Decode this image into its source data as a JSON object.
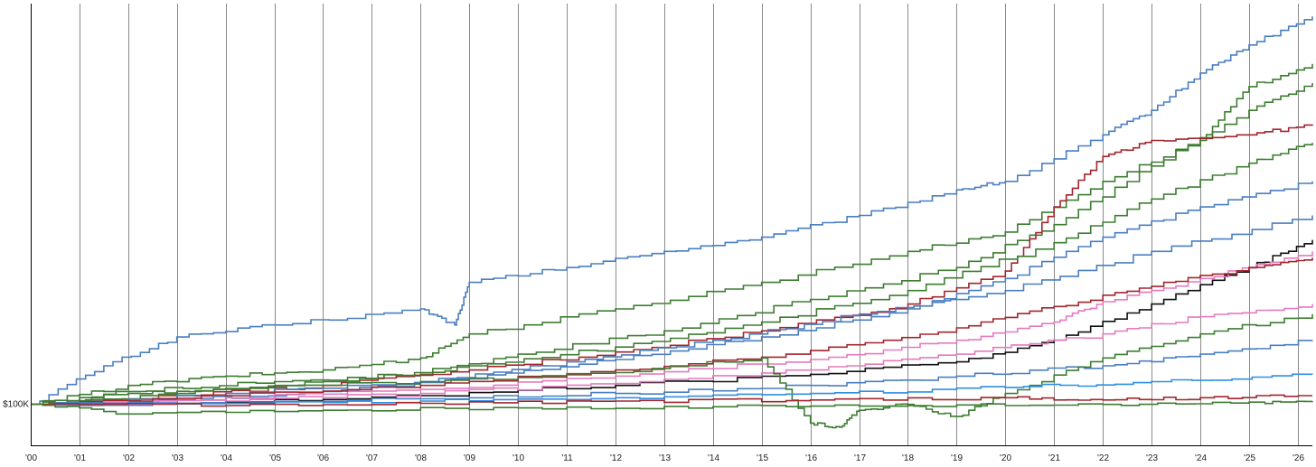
{
  "chart_data": {
    "type": "line",
    "title": "",
    "xlabel": "",
    "ylabel": "",
    "x_tick_labels": [
      "'00",
      "'01",
      "'02",
      "'03",
      "'04",
      "'05",
      "'06",
      "'07",
      "'08",
      "'09",
      "'10",
      "'11",
      "'12",
      "'13",
      "'14",
      "'15",
      "'16",
      "'17",
      "'18",
      "'19",
      "'20",
      "'21",
      "'22",
      "'23",
      "'24",
      "'25",
      "'26"
    ],
    "y_reference": {
      "label": "$100K",
      "value": 100000
    },
    "y_scale": "log",
    "xlim": [
      2000,
      2026.3
    ],
    "ylim": [
      70000,
      3300000
    ],
    "grid": {
      "vertical": true,
      "horizontal": false
    },
    "legend": "none",
    "colors": {
      "blue": "#4a7fc1",
      "green": "#3e7d32",
      "red": "#a3262e",
      "pink": "#e47bbf",
      "bright_blue": "#2f8fe0",
      "black": "#111111",
      "grid": "#8a8a8a",
      "axis": "#000000"
    },
    "series": [
      {
        "color": "blue",
        "values": [
          [
            2000,
            100000
          ],
          [
            2001.5,
            140000
          ],
          [
            2003,
            180000
          ],
          [
            2005,
            200000
          ],
          [
            2008,
            230000
          ],
          [
            2008.7,
            200000
          ],
          [
            2009,
            290000
          ],
          [
            2011,
            330000
          ],
          [
            2013,
            380000
          ],
          [
            2015,
            430000
          ],
          [
            2017,
            520000
          ],
          [
            2019,
            650000
          ],
          [
            2020,
            700000
          ],
          [
            2022,
            1050000
          ],
          [
            2023,
            1300000
          ],
          [
            2024,
            1800000
          ],
          [
            2025,
            2300000
          ],
          [
            2026.3,
            2950000
          ]
        ]
      },
      {
        "color": "green",
        "values": [
          [
            2000,
            100000
          ],
          [
            2002,
            118000
          ],
          [
            2004,
            128000
          ],
          [
            2006,
            135000
          ],
          [
            2008,
            150000
          ],
          [
            2009,
            185000
          ],
          [
            2012,
            230000
          ],
          [
            2015,
            290000
          ],
          [
            2018,
            380000
          ],
          [
            2020,
            450000
          ],
          [
            2022,
            700000
          ],
          [
            2024,
            1000000
          ],
          [
            2025,
            1600000
          ],
          [
            2026.3,
            1950000
          ]
        ]
      },
      {
        "color": "green",
        "values": [
          [
            2000,
            100000
          ],
          [
            2002,
            112000
          ],
          [
            2005,
            122000
          ],
          [
            2008,
            130000
          ],
          [
            2010,
            155000
          ],
          [
            2013,
            190000
          ],
          [
            2016,
            250000
          ],
          [
            2019,
            330000
          ],
          [
            2021,
            480000
          ],
          [
            2023,
            800000
          ],
          [
            2025,
            1300000
          ],
          [
            2026.3,
            1650000
          ]
        ]
      },
      {
        "color": "red",
        "values": [
          [
            2000,
            100000
          ],
          [
            2003,
            108000
          ],
          [
            2006,
            118000
          ],
          [
            2009,
            135000
          ],
          [
            2012,
            158000
          ],
          [
            2015,
            190000
          ],
          [
            2018,
            240000
          ],
          [
            2020,
            320000
          ],
          [
            2021,
            560000
          ],
          [
            2022,
            870000
          ],
          [
            2023,
            1000000
          ],
          [
            2025,
            1050000
          ],
          [
            2026.3,
            1150000
          ]
        ]
      },
      {
        "color": "green",
        "values": [
          [
            2000,
            100000
          ],
          [
            2003,
            110000
          ],
          [
            2006,
            122000
          ],
          [
            2009,
            140000
          ],
          [
            2012,
            165000
          ],
          [
            2015,
            205000
          ],
          [
            2018,
            270000
          ],
          [
            2021,
            410000
          ],
          [
            2023,
            600000
          ],
          [
            2025,
            820000
          ],
          [
            2026.3,
            980000
          ]
        ]
      },
      {
        "color": "blue",
        "values": [
          [
            2000,
            100000
          ],
          [
            2003,
            104000
          ],
          [
            2006,
            112000
          ],
          [
            2009,
            125000
          ],
          [
            2012,
            148000
          ],
          [
            2015,
            180000
          ],
          [
            2018,
            230000
          ],
          [
            2020,
            300000
          ],
          [
            2022,
            430000
          ],
          [
            2024,
            560000
          ],
          [
            2026.3,
            700000
          ]
        ]
      },
      {
        "color": "blue",
        "values": [
          [
            2000,
            100000
          ],
          [
            2004,
            110000
          ],
          [
            2008,
            122000
          ],
          [
            2011,
            145000
          ],
          [
            2014,
            175000
          ],
          [
            2017,
            220000
          ],
          [
            2020,
            270000
          ],
          [
            2023,
            380000
          ],
          [
            2026.3,
            520000
          ]
        ]
      },
      {
        "color": "black",
        "values": [
          [
            2000,
            100000
          ],
          [
            2004,
            102000
          ],
          [
            2008,
            108000
          ],
          [
            2012,
            118000
          ],
          [
            2016,
            130000
          ],
          [
            2019,
            145000
          ],
          [
            2021,
            175000
          ],
          [
            2023,
            240000
          ],
          [
            2025,
            330000
          ],
          [
            2026.3,
            420000
          ]
        ]
      },
      {
        "color": "pink",
        "values": [
          [
            2000,
            100000
          ],
          [
            2004,
            106000
          ],
          [
            2008,
            114000
          ],
          [
            2012,
            128000
          ],
          [
            2016,
            148000
          ],
          [
            2019,
            175000
          ],
          [
            2021,
            205000
          ],
          [
            2022,
            245000
          ],
          [
            2024,
            300000
          ],
          [
            2026.3,
            380000
          ]
        ]
      },
      {
        "color": "red",
        "values": [
          [
            2000,
            100000
          ],
          [
            2004,
            108000
          ],
          [
            2008,
            118000
          ],
          [
            2012,
            135000
          ],
          [
            2016,
            160000
          ],
          [
            2019,
            195000
          ],
          [
            2021,
            235000
          ],
          [
            2023,
            280000
          ],
          [
            2025,
            330000
          ],
          [
            2026.3,
            360000
          ]
        ]
      },
      {
        "color": "pink",
        "values": [
          [
            2000,
            100000
          ],
          [
            2004,
            103000
          ],
          [
            2008,
            110000
          ],
          [
            2012,
            120000
          ],
          [
            2016,
            135000
          ],
          [
            2019,
            155000
          ],
          [
            2022,
            185000
          ],
          [
            2024,
            215000
          ],
          [
            2026.3,
            240000
          ]
        ]
      },
      {
        "color": "blue",
        "values": [
          [
            2000,
            100000
          ],
          [
            2004,
            101000
          ],
          [
            2008,
            105000
          ],
          [
            2012,
            110000
          ],
          [
            2016,
            118000
          ],
          [
            2019,
            128000
          ],
          [
            2022,
            140000
          ],
          [
            2024,
            155000
          ],
          [
            2026.3,
            175000
          ]
        ]
      },
      {
        "color": "green",
        "values": [
          [
            2000,
            100000
          ],
          [
            2002,
            110000
          ],
          [
            2004,
            115000
          ],
          [
            2008,
            122000
          ],
          [
            2012,
            132000
          ],
          [
            2015,
            150000
          ],
          [
            2016,
            85000
          ],
          [
            2016.6,
            82000
          ],
          [
            2017,
            95000
          ],
          [
            2018,
            100000
          ],
          [
            2019,
            90000
          ],
          [
            2020,
            110000
          ],
          [
            2022,
            150000
          ],
          [
            2024,
            185000
          ],
          [
            2026.3,
            220000
          ]
        ]
      },
      {
        "color": "bright_blue",
        "values": [
          [
            2000,
            100000
          ],
          [
            2004,
            101000
          ],
          [
            2008,
            103000
          ],
          [
            2012,
            106000
          ],
          [
            2016,
            110000
          ],
          [
            2020,
            116000
          ],
          [
            2023,
            122000
          ],
          [
            2026.3,
            130000
          ]
        ]
      },
      {
        "color": "red",
        "values": [
          [
            2000,
            100000
          ],
          [
            2004,
            99000
          ],
          [
            2008,
            101000
          ],
          [
            2012,
            103000
          ],
          [
            2016,
            104000
          ],
          [
            2020,
            106000
          ],
          [
            2022,
            104000
          ],
          [
            2024,
            106000
          ],
          [
            2026.3,
            108000
          ]
        ]
      },
      {
        "color": "green",
        "values": [
          [
            2000,
            100000
          ],
          [
            2002,
            92000
          ],
          [
            2006,
            95000
          ],
          [
            2010,
            97000
          ],
          [
            2014,
            98000
          ],
          [
            2018,
            99000
          ],
          [
            2022,
            100000
          ],
          [
            2025,
            102000
          ],
          [
            2026.3,
            103000
          ]
        ]
      }
    ]
  }
}
